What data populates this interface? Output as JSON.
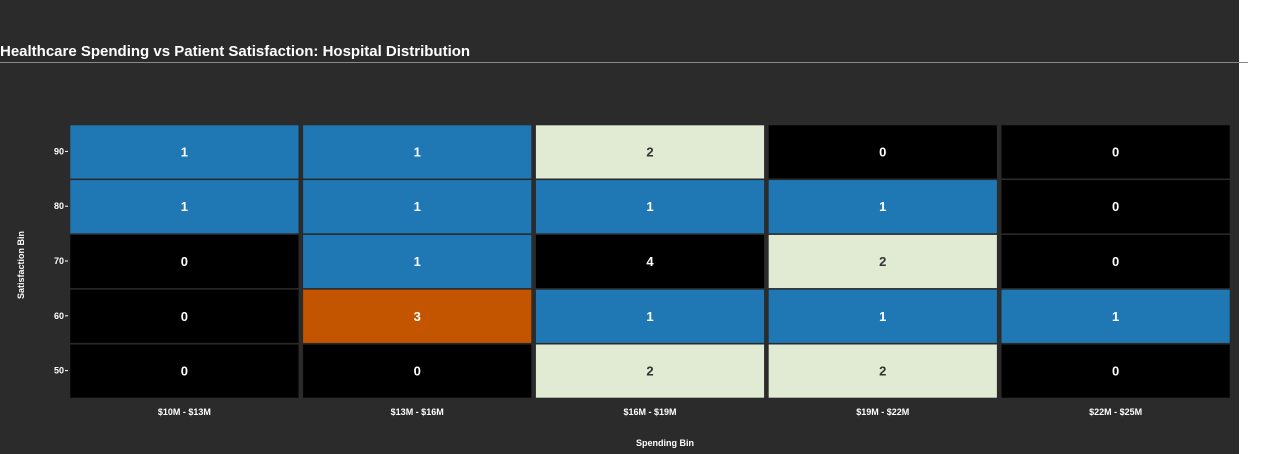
{
  "chart_data": {
    "type": "heatmap",
    "title": "Healthcare Spending vs Patient Satisfaction: Hospital Distribution",
    "xlabel": "Spending Bin",
    "ylabel": "Satisfaction Bin",
    "x_categories": [
      "$10M - $13M",
      "$13M - $16M",
      "$16M - $19M",
      "$19M - $22M",
      "$22M - $25M"
    ],
    "y_categories": [
      "90",
      "80",
      "70",
      "60",
      "50"
    ],
    "values": [
      [
        1,
        1,
        2,
        0,
        0
      ],
      [
        1,
        1,
        1,
        1,
        0
      ],
      [
        0,
        1,
        4,
        2,
        0
      ],
      [
        0,
        3,
        1,
        1,
        1
      ],
      [
        0,
        0,
        2,
        2,
        0
      ]
    ],
    "value_colors": {
      "0": "#000000",
      "1": "#1f77b4",
      "2": "#e1ead3",
      "3": "#c45500",
      "4": "#000000"
    },
    "text_colors": {
      "0": "#ffffff",
      "1": "#ffffff",
      "2": "#333333",
      "3": "#ffffff",
      "4": "#ffffff"
    },
    "background": "#2b2b2b"
  }
}
